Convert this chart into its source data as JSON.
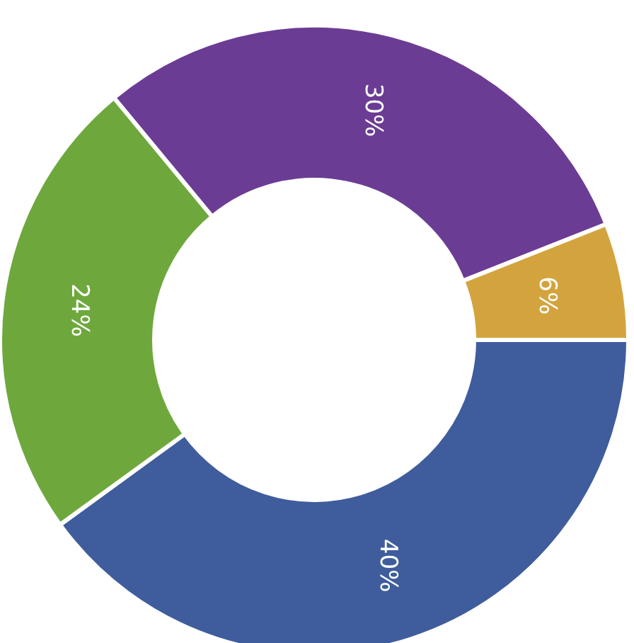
{
  "chart_data": {
    "type": "donut",
    "categories": [
      null,
      null,
      null,
      null
    ],
    "values": [
      40,
      24,
      30,
      6
    ],
    "colors": [
      "#3f5d9c",
      "#6ea83c",
      "#6b3c94",
      "#d3a43e"
    ],
    "value_labels": [
      "40%",
      "24%",
      "30%",
      "6%"
    ]
  }
}
